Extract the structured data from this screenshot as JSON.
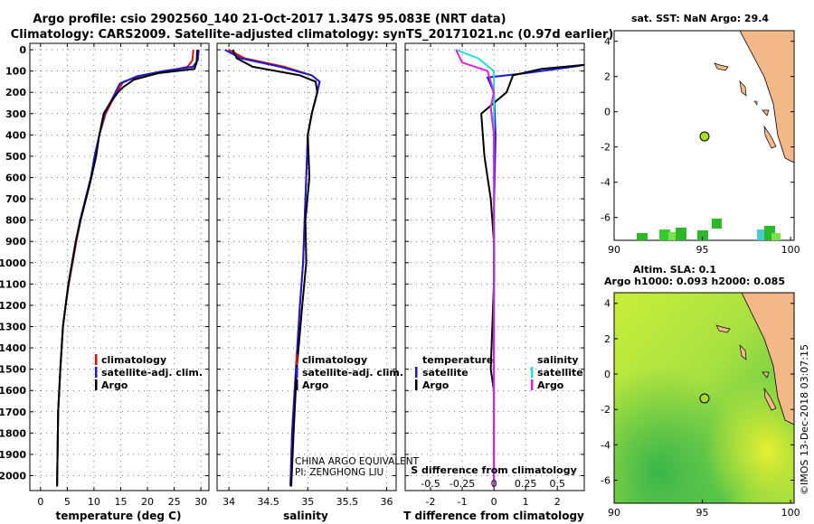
{
  "header": {
    "title_line1": "Argo profile: csio 2902560_140 21-Oct-2017 1.347S 95.083E (NRT data)",
    "title_line2": "Climatology: CARS2009. Satellite-adjusted climatology: synTS_20171021.nc (0.97d earlier)"
  },
  "colors": {
    "climatology": "#e01010",
    "satellite": "#1a1acc",
    "argo": "#000000",
    "cyan": "#22dddd",
    "magenta": "#dd22dd",
    "land": "#f2b888",
    "sla_ocean": "#b0e040"
  },
  "depth_axis": {
    "ticks": [
      "0",
      "100",
      "200",
      "300",
      "400",
      "500",
      "600",
      "700",
      "800",
      "900",
      "1000",
      "1100",
      "1200",
      "1300",
      "1400",
      "1500",
      "1600",
      "1700",
      "1800",
      "1900",
      "2000"
    ],
    "values": [
      0,
      100,
      200,
      300,
      400,
      500,
      600,
      700,
      800,
      900,
      1000,
      1100,
      1200,
      1300,
      1400,
      1500,
      1600,
      1700,
      1800,
      1900,
      2000
    ],
    "ylim": [
      -30,
      2070
    ]
  },
  "panels": {
    "temperature": {
      "xlabel": "temperature (deg C)",
      "xticks": [
        "0",
        "5",
        "10",
        "15",
        "20",
        "25",
        "30"
      ],
      "xtick_values": [
        0,
        5,
        10,
        15,
        20,
        25,
        30
      ],
      "xlim": [
        -2,
        31.5
      ],
      "legend": [
        "climatology",
        "satellite-adj. clim.",
        "Argo"
      ]
    },
    "salinity": {
      "xlabel": "salinity",
      "xticks": [
        "34",
        "34.5",
        "35",
        "35.5",
        "36"
      ],
      "xtick_values": [
        34,
        34.5,
        35,
        35.5,
        36
      ],
      "xlim": [
        33.85,
        36.12
      ],
      "legend": [
        "climatology",
        "satellite-adj. clim.",
        "Argo"
      ],
      "annotation1": "CHINA ARGO EQUIVALENT",
      "annotation2": "PI: ZENGHONG LIU"
    },
    "difference": {
      "xlabel": "T difference from climatology",
      "top_label": "S difference from climatology",
      "xticks": [
        "-2",
        "-1",
        "0",
        "1",
        "2"
      ],
      "xtick_values": [
        -2,
        -1,
        0,
        1,
        2
      ],
      "s_ticks": [
        "-0.5",
        "-0.25",
        "0",
        "0.25",
        "0.5"
      ],
      "s_tick_values": [
        -2,
        -1,
        0,
        1,
        2
      ],
      "xlim": [
        -2.8,
        2.85
      ],
      "legend_temperature_title": "temperature",
      "legend_salinity_title": "salinity",
      "legend_items_left": [
        "satellite",
        "Argo"
      ],
      "legend_items_right": [
        "satellite",
        "Argo"
      ]
    }
  },
  "map_sst": {
    "title": "sat. SST: NaN Argo: 29.4",
    "xticks": [
      "90",
      "95",
      "100"
    ],
    "xtick_values": [
      90,
      95,
      100
    ],
    "yticks": [
      "4",
      "2",
      "0",
      "-2",
      "-4",
      "-6"
    ],
    "ytick_values": [
      4,
      2,
      0,
      -2,
      -4,
      -6
    ],
    "xlim": [
      90,
      100.2
    ],
    "ylim": [
      -7.3,
      4.6
    ],
    "argo_position": {
      "lon": 95.083,
      "lat": -1.347
    }
  },
  "map_sla": {
    "title_line1": "Altim. SLA: 0.1",
    "title_line2": "Argo h1000: 0.093 h2000: 0.085",
    "xticks": [
      "90",
      "95",
      "100"
    ],
    "xtick_values": [
      90,
      95,
      100
    ],
    "yticks": [
      "4",
      "2",
      "0",
      "-2",
      "-4",
      "-6"
    ],
    "ytick_values": [
      4,
      2,
      0,
      -2,
      -4,
      -6
    ],
    "xlim": [
      90,
      100.2
    ],
    "ylim": [
      -7.3,
      4.6
    ],
    "argo_position": {
      "lon": 95.083,
      "lat": -1.347
    }
  },
  "credit": "©IMOS 13-Dec-2018 03:07:15",
  "chart_data": [
    {
      "type": "line",
      "title": "Argo profile: csio 2902560_140 21-Oct-2017 1.347S 95.083E (NRT data)",
      "xlabel": "temperature (deg C)",
      "ylabel": "depth",
      "xlim": [
        -2,
        31.5
      ],
      "ylim": [
        -30,
        2070
      ],
      "series": [
        {
          "name": "climatology",
          "color": "#e01010",
          "x": [
            28.6,
            28.4,
            27.5,
            24,
            19,
            15.5,
            14.3,
            13.2,
            12.2,
            11,
            10.2,
            9.5,
            8.5,
            7.5,
            6.7,
            6.0,
            5.3,
            4.7,
            4.2,
            3.7,
            3.3,
            3.1
          ],
          "y": [
            0,
            50,
            80,
            100,
            120,
            150,
            200,
            250,
            300,
            400,
            500,
            600,
            700,
            800,
            900,
            1000,
            1100,
            1200,
            1300,
            1500,
            1700,
            2050
          ]
        },
        {
          "name": "satellite-adj. clim.",
          "color": "#1a1acc",
          "x": [
            29.6,
            29.4,
            28.5,
            23,
            18,
            14.8,
            14.0,
            13.0,
            12.0,
            11,
            10.1,
            9.4,
            8.4,
            7.4,
            6.6,
            5.9,
            5.2,
            4.7,
            4.2,
            3.7,
            3.3,
            3.1
          ],
          "y": [
            0,
            50,
            80,
            100,
            125,
            160,
            200,
            250,
            300,
            400,
            500,
            600,
            700,
            800,
            900,
            1000,
            1100,
            1200,
            1300,
            1500,
            1700,
            2050
          ]
        },
        {
          "name": "Argo",
          "color": "#000000",
          "x": [
            29.3,
            29.2,
            28.8,
            22,
            17.5,
            15.5,
            14.5,
            13.0,
            11.8,
            11.0,
            10.4,
            9.5,
            8.5,
            7.5,
            6.6,
            5.9,
            5.2,
            4.7,
            4.2,
            3.7,
            3.3,
            3.1
          ],
          "y": [
            0,
            60,
            90,
            110,
            140,
            175,
            200,
            250,
            300,
            400,
            500,
            600,
            700,
            800,
            900,
            1000,
            1100,
            1200,
            1300,
            1500,
            1700,
            2050
          ]
        }
      ]
    },
    {
      "type": "line",
      "xlabel": "salinity",
      "ylabel": "depth",
      "xlim": [
        33.85,
        36.12
      ],
      "ylim": [
        -30,
        2070
      ],
      "series": [
        {
          "name": "climatology",
          "color": "#e01010",
          "x": [
            34.0,
            34.2,
            34.7,
            35.05,
            35.15,
            35.12,
            35.05,
            35.0,
            34.98,
            34.96,
            34.94,
            34.9,
            34.85,
            34.8,
            34.78
          ],
          "y": [
            0,
            40,
            80,
            120,
            150,
            200,
            300,
            400,
            600,
            800,
            1000,
            1200,
            1500,
            1800,
            2050
          ]
        },
        {
          "name": "satellite-adj. clim.",
          "color": "#1a1acc",
          "x": [
            33.95,
            34.15,
            34.65,
            35.05,
            35.15,
            35.12,
            35.05,
            35.0,
            34.98,
            34.96,
            34.94,
            34.9,
            34.85,
            34.8,
            34.78
          ],
          "y": [
            0,
            40,
            80,
            120,
            150,
            200,
            300,
            400,
            600,
            800,
            1000,
            1200,
            1500,
            1800,
            2050
          ]
        },
        {
          "name": "Argo",
          "color": "#000000",
          "x": [
            34.05,
            34.1,
            34.3,
            34.9,
            35.1,
            35.12,
            35.05,
            35.0,
            35.02,
            34.97,
            34.98,
            34.93,
            34.86,
            34.82,
            34.79
          ],
          "y": [
            0,
            40,
            80,
            120,
            150,
            200,
            300,
            400,
            600,
            800,
            1000,
            1200,
            1500,
            1800,
            2050
          ]
        }
      ]
    },
    {
      "type": "line",
      "xlabel": "T difference from climatology",
      "ylabel": "depth",
      "xlim": [
        -2.8,
        2.85
      ],
      "ylim": [
        -30,
        2070
      ],
      "series": [
        {
          "name": "temperature satellite",
          "color": "#1a1acc",
          "x": [
            2.9,
            2.5,
            1.0,
            -0.2,
            0,
            0.05,
            0,
            0,
            0
          ],
          "y": [
            70,
            80,
            110,
            130,
            200,
            400,
            800,
            1500,
            2050
          ]
        },
        {
          "name": "temperature Argo",
          "color": "#000000",
          "x": [
            2.9,
            1.5,
            0.6,
            0.4,
            0,
            -0.4,
            -0.3,
            -0.1,
            0,
            0,
            -0.1,
            0,
            0,
            0
          ],
          "y": [
            70,
            90,
            120,
            200,
            250,
            300,
            500,
            700,
            900,
            1100,
            1500,
            1600,
            1800,
            2050
          ]
        },
        {
          "name": "salinity satellite",
          "color": "#22dddd",
          "x": [
            -1.2,
            -0.5,
            0,
            0,
            0,
            0.02,
            0,
            0
          ],
          "y": [
            0,
            40,
            100,
            200,
            500,
            1000,
            1500,
            2050
          ]
        },
        {
          "name": "salinity Argo",
          "color": "#dd22dd",
          "x": [
            -1.2,
            -1.0,
            -0.2,
            0,
            -0.1,
            0,
            0,
            0
          ],
          "y": [
            0,
            60,
            100,
            200,
            270,
            400,
            1000,
            2050
          ]
        }
      ]
    }
  ]
}
